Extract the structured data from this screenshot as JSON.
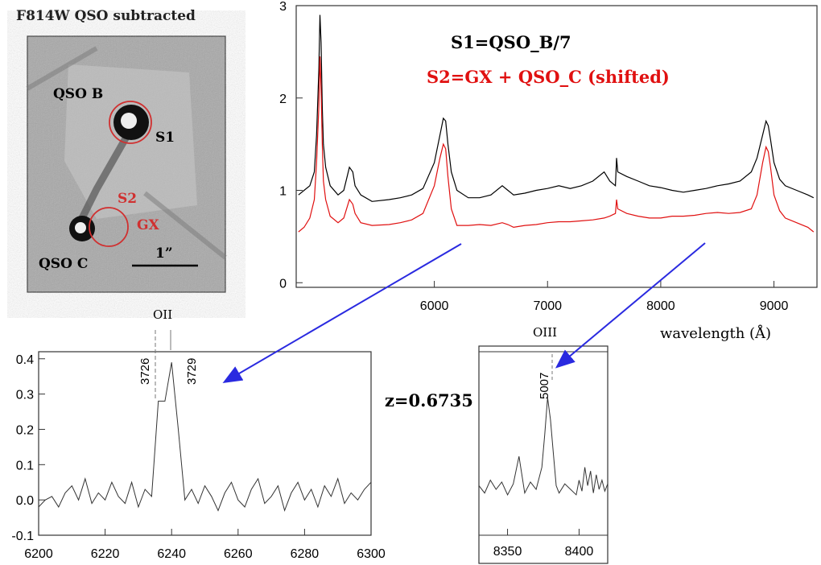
{
  "image_panel": {
    "title": "F814W QSO subtracted",
    "labels": {
      "qso_b": "QSO B",
      "qso_c": "QSO C",
      "s1": "S1",
      "s2": "S2",
      "gx": "GX",
      "scale": "1”"
    }
  },
  "redshift": "z=0.6735",
  "colors": {
    "s1": "#000000",
    "s2": "#e01010",
    "arrow": "#2a2ae0",
    "circle": "#d03030"
  },
  "chart_data": [
    {
      "id": "main",
      "type": "line",
      "title": "",
      "xlabel": "wavelength (Å)",
      "ylabel": "",
      "xlim": [
        4780,
        9380
      ],
      "ylim": [
        -0.05,
        3.0
      ],
      "xticks": [
        6000,
        7000,
        8000,
        9000
      ],
      "yticks": [
        0,
        1,
        2,
        3
      ],
      "legend": [
        "S1=QSO_B/7",
        "S2=GX + QSO_C (shifted)"
      ],
      "series": [
        {
          "name": "S1=QSO_B/7",
          "color": "#000000",
          "x": [
            4800,
            4850,
            4900,
            4940,
            4960,
            4980,
            4990,
            5000,
            5010,
            5020,
            5040,
            5080,
            5150,
            5200,
            5250,
            5280,
            5300,
            5350,
            5450,
            5600,
            5700,
            5800,
            5900,
            6000,
            6050,
            6080,
            6100,
            6120,
            6150,
            6200,
            6300,
            6400,
            6500,
            6600,
            6650,
            6700,
            6800,
            6900,
            7000,
            7100,
            7200,
            7300,
            7400,
            7500,
            7550,
            7600,
            7610,
            7620,
            7700,
            7800,
            7900,
            8000,
            8100,
            8200,
            8300,
            8400,
            8500,
            8600,
            8700,
            8800,
            8850,
            8900,
            8930,
            8950,
            8970,
            9000,
            9050,
            9100,
            9200,
            9300,
            9350
          ],
          "y": [
            0.95,
            1.0,
            1.05,
            1.2,
            1.6,
            2.3,
            2.9,
            2.6,
            1.9,
            1.5,
            1.25,
            1.05,
            0.95,
            1.0,
            1.25,
            1.2,
            1.05,
            0.95,
            0.88,
            0.9,
            0.92,
            0.95,
            1.02,
            1.3,
            1.6,
            1.78,
            1.75,
            1.5,
            1.2,
            1.0,
            0.92,
            0.92,
            0.95,
            1.05,
            1.0,
            0.95,
            0.97,
            1.0,
            1.02,
            1.05,
            1.02,
            1.05,
            1.1,
            1.2,
            1.1,
            1.05,
            1.35,
            1.2,
            1.15,
            1.1,
            1.05,
            1.03,
            1.0,
            0.98,
            1.0,
            1.02,
            1.05,
            1.07,
            1.1,
            1.2,
            1.35,
            1.6,
            1.75,
            1.7,
            1.55,
            1.3,
            1.12,
            1.05,
            1.0,
            0.95,
            0.92
          ]
        },
        {
          "name": "S2=GX + QSO_C (shifted)",
          "color": "#e01010",
          "x": [
            4800,
            4850,
            4900,
            4940,
            4960,
            4980,
            4990,
            5000,
            5010,
            5020,
            5040,
            5080,
            5150,
            5200,
            5250,
            5280,
            5300,
            5350,
            5450,
            5600,
            5700,
            5800,
            5900,
            6000,
            6050,
            6080,
            6100,
            6120,
            6150,
            6200,
            6300,
            6400,
            6500,
            6600,
            6650,
            6700,
            6800,
            6900,
            7000,
            7100,
            7200,
            7300,
            7400,
            7500,
            7550,
            7600,
            7610,
            7620,
            7700,
            7800,
            7900,
            8000,
            8100,
            8200,
            8300,
            8400,
            8500,
            8600,
            8700,
            8800,
            8850,
            8900,
            8930,
            8950,
            8970,
            9000,
            9050,
            9100,
            9200,
            9300,
            9350
          ],
          "y": [
            0.55,
            0.6,
            0.7,
            0.9,
            1.3,
            1.9,
            2.45,
            2.1,
            1.5,
            1.1,
            0.9,
            0.72,
            0.65,
            0.7,
            0.9,
            0.85,
            0.75,
            0.65,
            0.62,
            0.63,
            0.65,
            0.68,
            0.75,
            1.05,
            1.35,
            1.5,
            1.45,
            1.15,
            0.8,
            0.62,
            0.62,
            0.63,
            0.62,
            0.65,
            0.63,
            0.6,
            0.62,
            0.63,
            0.65,
            0.66,
            0.66,
            0.67,
            0.68,
            0.7,
            0.72,
            0.75,
            0.9,
            0.8,
            0.75,
            0.72,
            0.7,
            0.7,
            0.72,
            0.72,
            0.73,
            0.75,
            0.76,
            0.75,
            0.76,
            0.8,
            0.95,
            1.3,
            1.47,
            1.42,
            1.25,
            0.95,
            0.78,
            0.7,
            0.65,
            0.6,
            0.55
          ]
        }
      ]
    },
    {
      "id": "oii",
      "type": "line",
      "xlim": [
        6200,
        6300
      ],
      "ylim": [
        -0.1,
        0.42
      ],
      "xticks": [
        6200,
        6220,
        6240,
        6260,
        6280,
        6300
      ],
      "yticks": [
        -0.1,
        0.0,
        0.1,
        0.2,
        0.3,
        0.4
      ],
      "ytick_labels": [
        "-0.1",
        "0.0",
        "0.1",
        "0.2",
        "0.3",
        "0.4"
      ],
      "annotations": {
        "line_name": "OII",
        "left": "3726",
        "right": "3729"
      },
      "series": [
        {
          "name": "S2",
          "color": "#000000",
          "x": [
            6200,
            6202,
            6204,
            6206,
            6208,
            6210,
            6212,
            6214,
            6216,
            6218,
            6220,
            6222,
            6224,
            6226,
            6228,
            6230,
            6232,
            6234,
            6236,
            6238,
            6240,
            6242,
            6244,
            6246,
            6248,
            6250,
            6252,
            6254,
            6256,
            6258,
            6260,
            6262,
            6264,
            6266,
            6268,
            6270,
            6272,
            6274,
            6276,
            6278,
            6280,
            6282,
            6284,
            6286,
            6288,
            6290,
            6292,
            6294,
            6296,
            6298,
            6300
          ],
          "y": [
            -0.02,
            0.0,
            0.01,
            -0.02,
            0.02,
            0.04,
            0.0,
            0.06,
            -0.01,
            0.02,
            0.0,
            0.05,
            0.01,
            -0.01,
            0.05,
            -0.02,
            0.03,
            0.01,
            0.28,
            0.28,
            0.39,
            0.2,
            0.0,
            0.03,
            -0.01,
            0.04,
            0.01,
            -0.03,
            0.02,
            0.05,
            0.0,
            -0.02,
            0.03,
            0.06,
            -0.01,
            0.01,
            0.04,
            -0.03,
            0.02,
            0.05,
            0.0,
            0.03,
            -0.02,
            0.04,
            0.01,
            0.06,
            -0.01,
            0.02,
            0.0,
            0.03,
            0.05
          ]
        }
      ]
    },
    {
      "id": "oiii",
      "type": "line",
      "xlim": [
        8330,
        8420
      ],
      "ylim": [
        -0.25,
        0.75
      ],
      "xticks": [
        8350,
        8400
      ],
      "yticks": [],
      "annotations": {
        "line_name": "OIII",
        "wl": "5007"
      },
      "series": [
        {
          "name": "S2",
          "color": "#000000",
          "x": [
            8330,
            8334,
            8338,
            8342,
            8346,
            8350,
            8354,
            8358,
            8362,
            8366,
            8370,
            8374,
            8376,
            8378,
            8380,
            8382,
            8384,
            8386,
            8390,
            8394,
            8398,
            8400,
            8402,
            8404,
            8406,
            8408,
            8410,
            8412,
            8414,
            8416,
            8418,
            8420
          ],
          "y": [
            0.02,
            -0.02,
            0.05,
            0.0,
            0.04,
            -0.03,
            0.03,
            0.18,
            -0.02,
            0.04,
            0.0,
            0.12,
            0.3,
            0.5,
            0.38,
            0.2,
            0.02,
            -0.02,
            0.03,
            0.0,
            -0.03,
            0.05,
            -0.01,
            0.12,
            0.02,
            0.1,
            -0.02,
            0.08,
            0.0,
            0.05,
            -0.01,
            0.03
          ]
        }
      ]
    }
  ]
}
